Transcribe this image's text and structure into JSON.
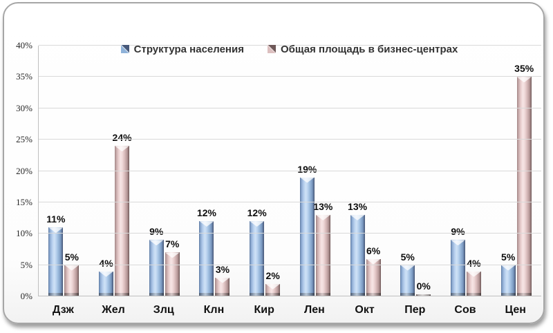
{
  "window": {
    "background": "#ffffff",
    "frame_border_color": "#a6a6a6"
  },
  "chart_data": {
    "type": "bar",
    "title": "",
    "categories": [
      "Дзж",
      "Жел",
      "Злц",
      "Клн",
      "Кир",
      "Лен",
      "Окт",
      "Пер",
      "Сов",
      "Цен"
    ],
    "series": [
      {
        "name": "Структура населения",
        "color": "#9cbade",
        "values": [
          11,
          4,
          9,
          12,
          12,
          19,
          13,
          5,
          9,
          5
        ]
      },
      {
        "name": "Общая площадь в бизнес-центрах",
        "color": "#eed8d8",
        "values": [
          5,
          24,
          7,
          3,
          2,
          13,
          6,
          0,
          4,
          35
        ]
      }
    ],
    "data_label_suffix": "%",
    "ylim": [
      0,
      40
    ],
    "ytick_step": 5,
    "ytick_labels": [
      "0%",
      "5%",
      "10%",
      "15%",
      "20%",
      "25%",
      "30%",
      "35%",
      "40%"
    ],
    "grid": true,
    "legend_position": "top-center"
  }
}
